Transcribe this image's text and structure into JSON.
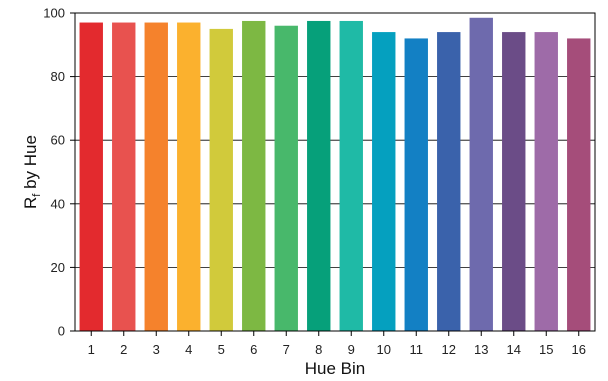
{
  "chart_data": {
    "type": "bar",
    "title": "",
    "xlabel": "Hue Bin",
    "ylabel_main": "R",
    "ylabel_sub": "f",
    "ylabel_rest": " by Hue",
    "categories": [
      "1",
      "2",
      "3",
      "4",
      "5",
      "6",
      "7",
      "8",
      "9",
      "10",
      "11",
      "12",
      "13",
      "14",
      "15",
      "16"
    ],
    "values": [
      97,
      97,
      97,
      97,
      95,
      97.5,
      96,
      97.5,
      97.5,
      94,
      92,
      94,
      98.5,
      94,
      94,
      92
    ],
    "colors": [
      "#e32a2e",
      "#e8524f",
      "#f5822c",
      "#fbb12e",
      "#d1ca3b",
      "#7db843",
      "#48b86b",
      "#06a07a",
      "#1fbaa6",
      "#05a0bf",
      "#1380c4",
      "#3a62ab",
      "#6e6aad",
      "#6b4c87",
      "#9e6ba8",
      "#a54d7a"
    ],
    "ylim": [
      0,
      100
    ],
    "yticks": [
      0,
      20,
      40,
      60,
      80,
      100
    ],
    "grid": true,
    "legend": "none"
  }
}
